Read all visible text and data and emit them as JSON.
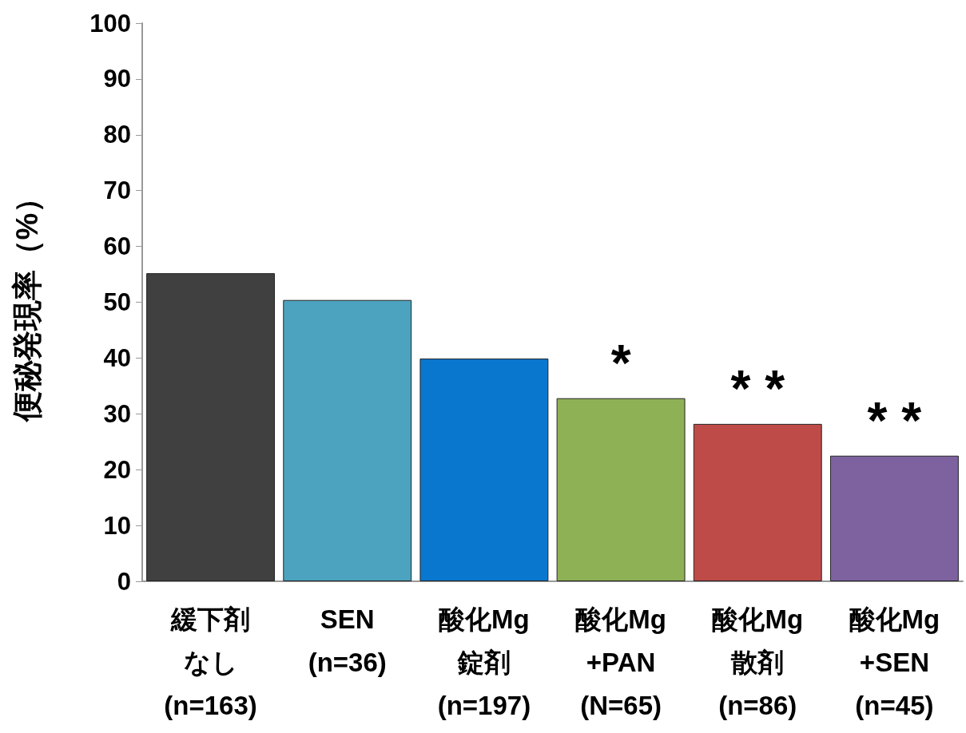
{
  "chart_data": {
    "type": "bar",
    "ylabel": "便秘発現率（%）",
    "categories": [
      "緩下剤なし\n(n=163)",
      "SEN\n(n=36)",
      "酸化Mg\n錠剤\n(n=197)",
      "酸化Mg\n+PAN\n(N=65)",
      "酸化Mg\n散剤\n(n=86)",
      "酸化Mg\n+SEN\n(n=45)"
    ],
    "values": [
      55.2,
      50.4,
      39.9,
      32.8,
      28.2,
      22.5
    ],
    "colors": [
      "#404040",
      "#4ba3bf",
      "#0a77cf",
      "#8fb155",
      "#bf4b48",
      "#7e62a0"
    ],
    "ylim": [
      0,
      100
    ],
    "yticks": [
      0,
      10,
      20,
      30,
      40,
      50,
      60,
      70,
      80,
      90,
      100
    ],
    "grid": false,
    "annotations": [
      {
        "text": "*",
        "x": "酸化Mg\n+PAN\n(N=65)",
        "y": 32.8
      },
      {
        "text": "* *",
        "x": "酸化Mg\n散剤\n(n=86)",
        "y": 28.2
      },
      {
        "text": "* *",
        "x": "酸化Mg\n+SEN\n(n=45)",
        "y": 22.5
      }
    ]
  }
}
